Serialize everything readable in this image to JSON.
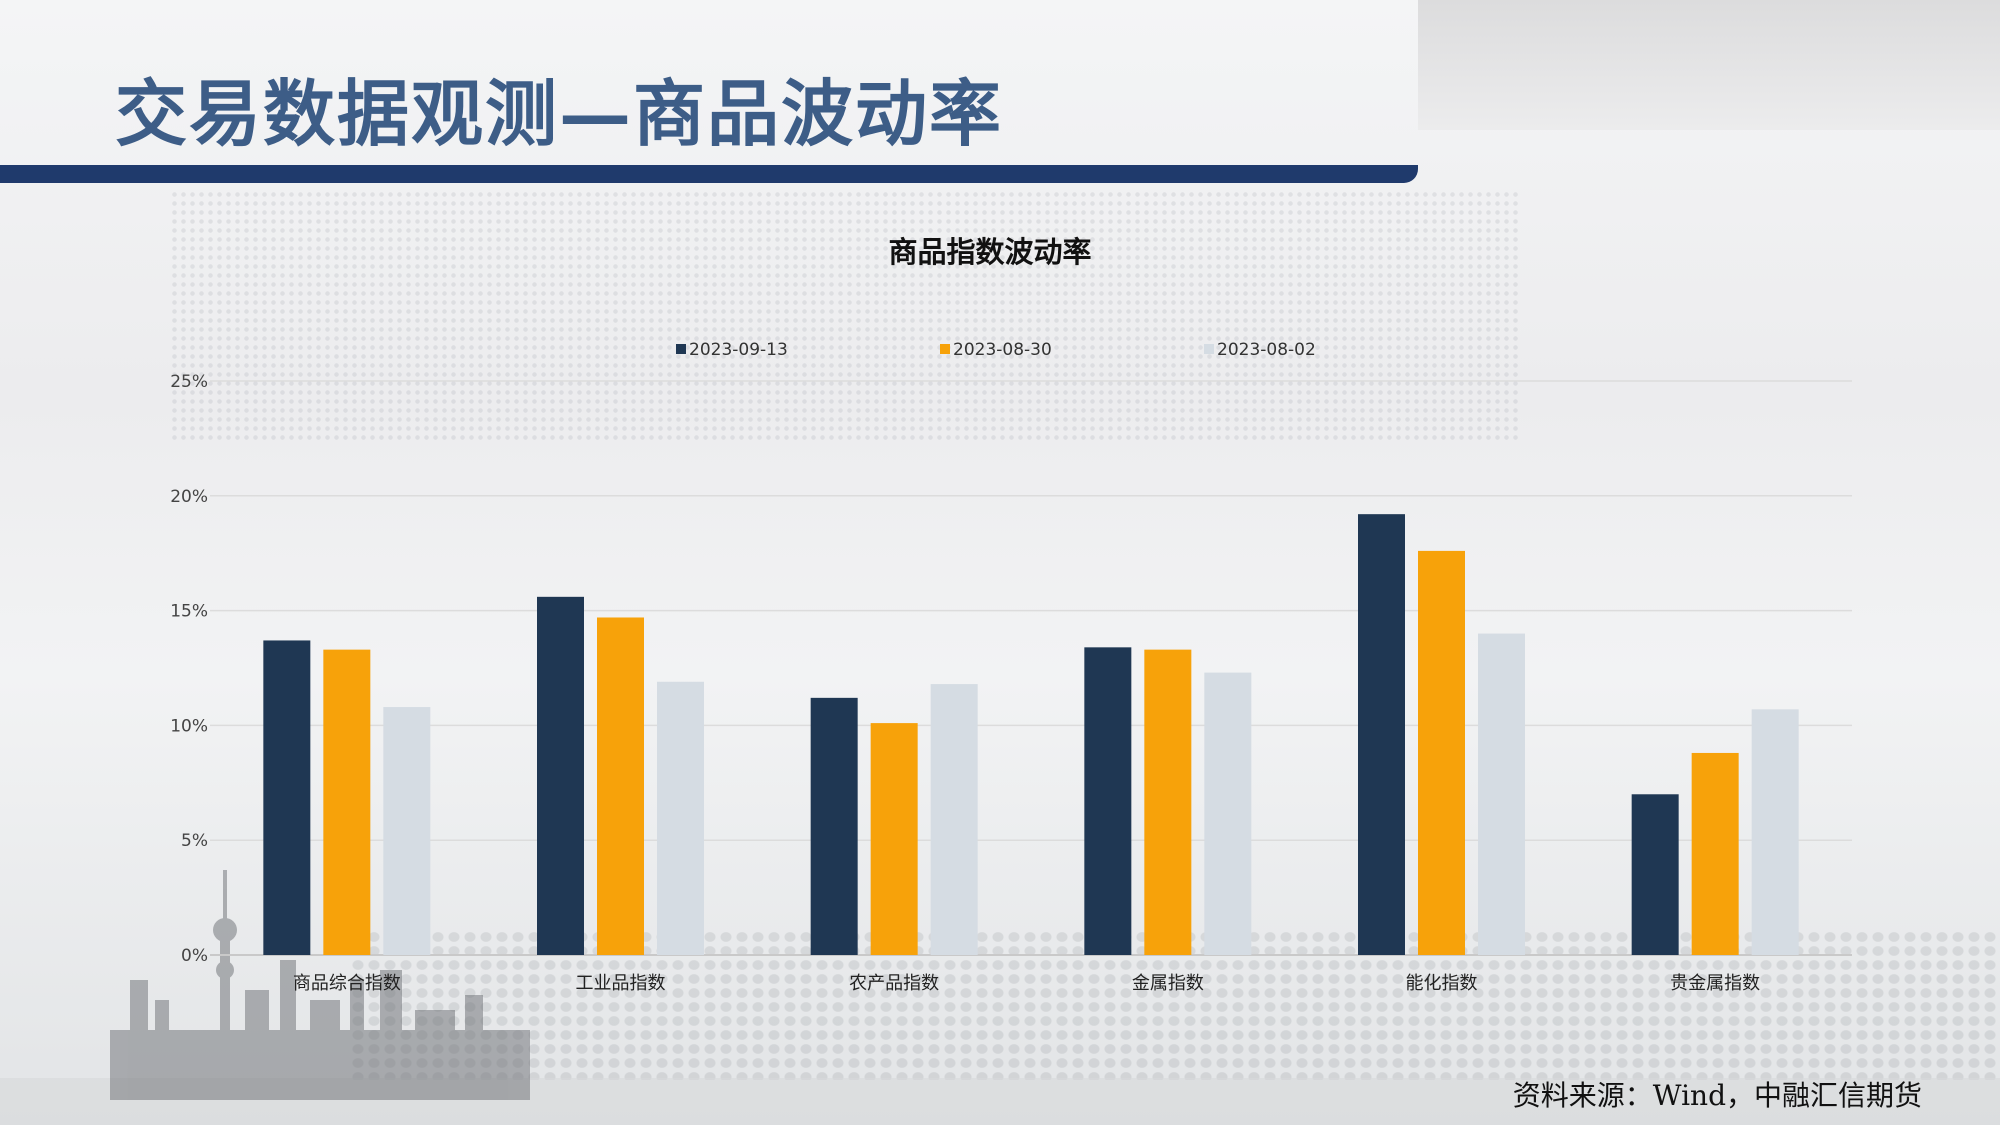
{
  "slide": {
    "title": "交易数据观测—商品波动率",
    "source": "资料来源：Wind，中融汇信期货"
  },
  "colors": {
    "title": "#3d5d87",
    "header_bar": "#1f3a6c",
    "series": [
      "#1f3753",
      "#f7a20a",
      "#d5dce3"
    ]
  },
  "chart_data": {
    "type": "bar",
    "title": "商品指数波动率",
    "categories": [
      "商品综合指数",
      "工业品指数",
      "农产品指数",
      "金属指数",
      "能化指数",
      "贵金属指数"
    ],
    "series": [
      {
        "name": "2023-09-13",
        "values": [
          13.7,
          15.6,
          11.2,
          13.4,
          19.2,
          7.0
        ]
      },
      {
        "name": "2023-08-30",
        "values": [
          13.3,
          14.7,
          10.1,
          13.3,
          17.6,
          8.8
        ]
      },
      {
        "name": "2023-08-02",
        "values": [
          10.8,
          11.9,
          11.8,
          12.3,
          14.0,
          10.7
        ]
      }
    ],
    "ylim": [
      0,
      25
    ],
    "yticks": [
      "0%",
      "5%",
      "10%",
      "15%",
      "20%",
      "25%"
    ],
    "grid": true,
    "legend": "top"
  }
}
